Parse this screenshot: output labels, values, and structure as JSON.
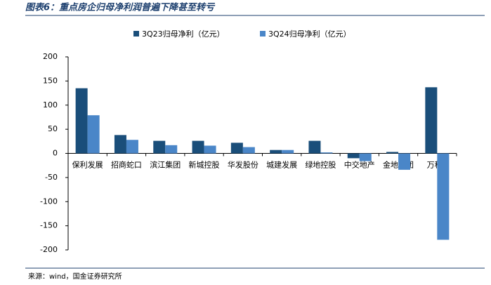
{
  "chart_data": {
    "type": "bar",
    "title": "图表6：重点房企归母净利润普遍下降甚至转亏",
    "source": "来源：wind，国金证券研究所",
    "categories": [
      "保利发展",
      "招商蛇口",
      "滨江集团",
      "新城控股",
      "华发股份",
      "城建发展",
      "绿地控股",
      "中交地产",
      "金地集团",
      "万科A"
    ],
    "series": [
      {
        "name": "3Q23归母净利（亿元）",
        "color": "#1a4e7a",
        "values": [
          135,
          38,
          26,
          26,
          22,
          7,
          26,
          -10,
          3,
          137
        ]
      },
      {
        "name": "3Q24归母净利（亿元）",
        "color": "#4a86c8",
        "values": [
          79,
          28,
          17,
          16,
          13,
          7,
          2,
          -16,
          -34,
          -179
        ]
      }
    ],
    "ylim": [
      -200,
      200
    ],
    "yticks": [
      -200,
      -150,
      -100,
      -50,
      0,
      50,
      100,
      150,
      200
    ]
  }
}
